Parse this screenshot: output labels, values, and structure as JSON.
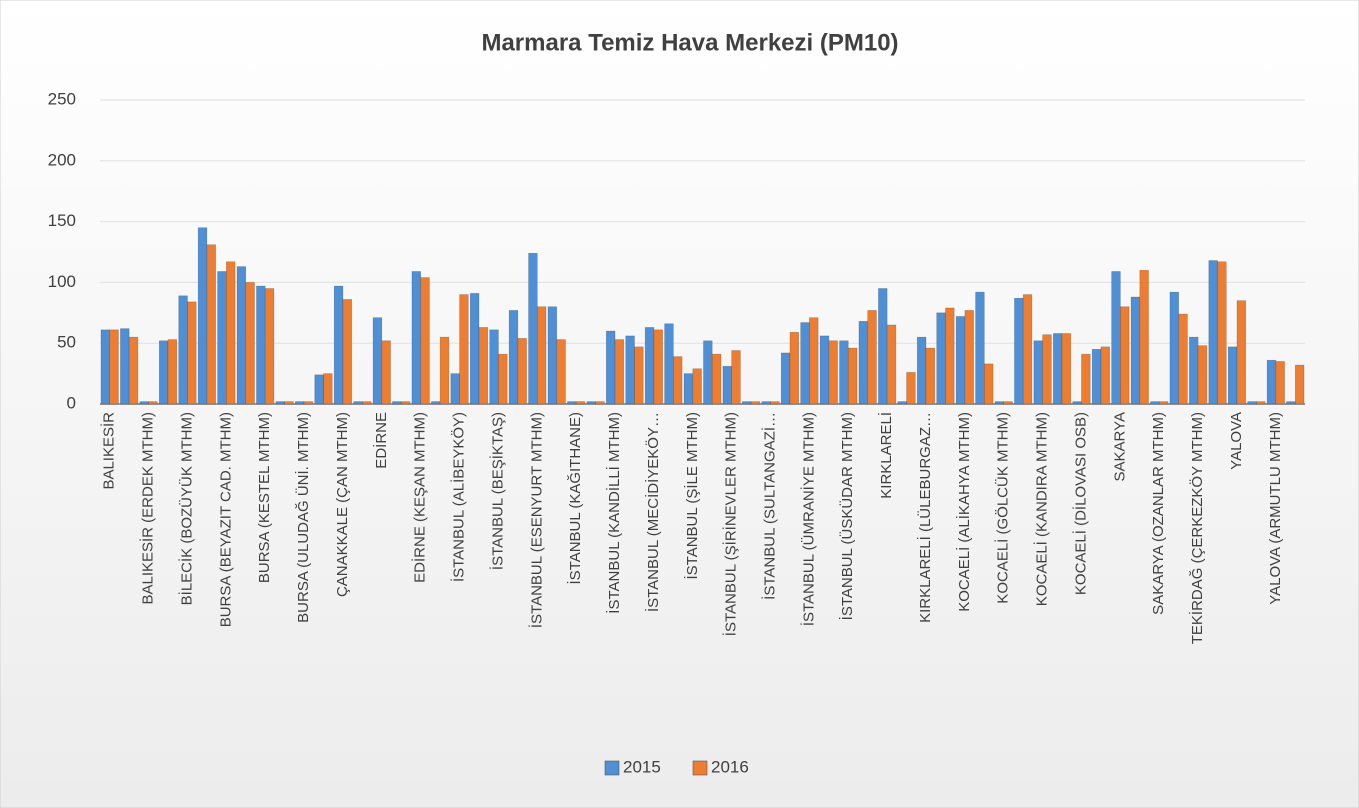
{
  "chart_data": {
    "type": "bar",
    "title": "Marmara Temiz Hava Merkezi (PM10)",
    "categories": [
      "BALIKESİR",
      null,
      "BALIKESİR (ERDEK MTHM)",
      null,
      "BİLECİK (BOZÜYÜK MTHM)",
      null,
      "BURSA (BEYAZIT CAD. MTHM)",
      null,
      "BURSA (KESTEL MTHM)",
      null,
      "BURSA (ULUDAĞ ÜNİ. MTHM)",
      null,
      "ÇANAKKALE (ÇAN MTHM)",
      null,
      "EDİRNE",
      null,
      "EDİRNE (KEŞAN MTHM)",
      null,
      "İSTANBUL (ALİBEYKÖY)",
      null,
      "İSTANBUL (BEŞİKTAŞ)",
      null,
      "İSTANBUL (ESENYURT MTHM)",
      null,
      "İSTANBUL (KAĞITHANE)",
      null,
      "İSTANBUL (KANDİLLİ MTHM)",
      null,
      "İSTANBUL (MECİDİYEKÖY…",
      null,
      "İSTANBUL (ŞİLE MTHM)",
      null,
      "İSTANBUL (ŞİRİNEVLER MTHM)",
      null,
      "İSTANBUL (SULTANGAZİ…",
      null,
      "İSTANBUL (ÜMRANİYE MTHM)",
      null,
      "İSTANBUL (ÜSKÜDAR MTHM)",
      null,
      "KIRKLARELİ",
      null,
      "KIRKLARELİ (LÜLEBURGAZ…",
      null,
      "KOCAELİ (ALİKAHYA MTHM)",
      null,
      "KOCAELİ (GÖLCÜK MTHM)",
      null,
      "KOCAELİ (KANDIRA MTHM)",
      null,
      "KOCAELİ (DİLOVASI OSB)",
      null,
      "SAKARYA",
      null,
      "SAKARYA (OZANLAR MTHM)",
      null,
      "TEKİRDAĞ (ÇERKEZKÖY MTHM)",
      null,
      "YALOVA",
      null,
      "YALOVA (ARMUTLU MTHM)",
      null
    ],
    "series": [
      {
        "name": "2015",
        "color": "#4f8fd6",
        "values": [
          61,
          62,
          2,
          52,
          89,
          145,
          109,
          113,
          97,
          2,
          2,
          24,
          97,
          2,
          71,
          2,
          109,
          2,
          25,
          91,
          61,
          77,
          124,
          80,
          2,
          2,
          60,
          56,
          63,
          66,
          25,
          52,
          31,
          2,
          2,
          42,
          67,
          56,
          52,
          68,
          95,
          2,
          55,
          75,
          72,
          92,
          2,
          87,
          52,
          58,
          2,
          45,
          109,
          88,
          2,
          92,
          55,
          118,
          47,
          2,
          36,
          2
        ]
      },
      {
        "name": "2016",
        "color": "#ed7d31",
        "values": [
          61,
          55,
          2,
          53,
          84,
          131,
          117,
          100,
          95,
          2,
          2,
          25,
          86,
          2,
          52,
          2,
          104,
          55,
          90,
          63,
          41,
          54,
          80,
          53,
          2,
          2,
          53,
          47,
          61,
          39,
          29,
          41,
          44,
          2,
          2,
          59,
          71,
          52,
          46,
          77,
          65,
          26,
          46,
          79,
          77,
          33,
          2,
          90,
          57,
          58,
          41,
          47,
          80,
          110,
          2,
          74,
          48,
          117,
          85,
          2,
          35,
          32
        ]
      }
    ],
    "ylim": [
      0,
      250
    ],
    "yticks": [
      0,
      50,
      100,
      150,
      200,
      250
    ],
    "grid": true,
    "legend": "bottom"
  }
}
